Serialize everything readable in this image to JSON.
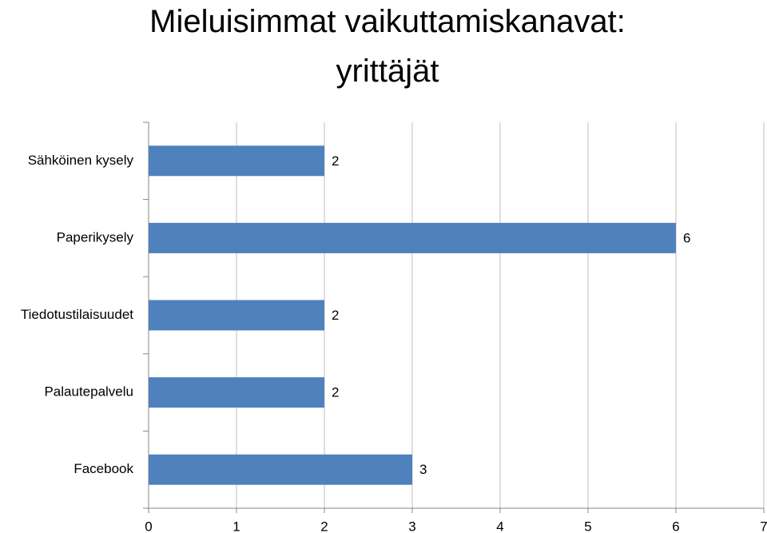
{
  "chart_data": {
    "type": "bar",
    "orientation": "horizontal",
    "title": "Mieluisimmat vaikuttamiskanavat: yrittäjät",
    "categories": [
      "Sähköinen kysely",
      "Paperikysely",
      "Tiedotustilaisuudet",
      "Palautepalvelu",
      "Facebook"
    ],
    "values": [
      2,
      6,
      2,
      2,
      3
    ],
    "color": "#4f81bd",
    "xlim": [
      0,
      7
    ],
    "xticks": [
      0,
      1,
      2,
      3,
      4,
      5,
      6,
      7
    ],
    "grid": true
  }
}
